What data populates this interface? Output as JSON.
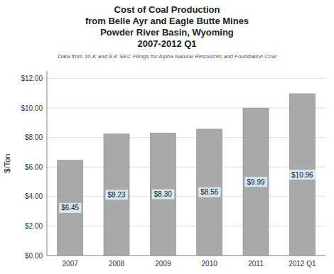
{
  "chart_data": {
    "type": "bar",
    "title": "Cost of Coal Production\nfrom Belle Ayr and Eagle Butte Mines\nPowder River Basin, Wyoming\n2007-2012 Q1",
    "subtitle": "Data from 10-K and 8-K SEC Filings for Alpha Natural Resources and Foundation Coal",
    "categories": [
      "2007",
      "2008",
      "2009",
      "2010",
      "2011",
      "2012 Q1"
    ],
    "values": [
      6.45,
      8.23,
      8.3,
      8.56,
      9.99,
      10.96
    ],
    "value_labels": [
      "$6.45",
      "$8.23",
      "$8.30",
      "$8.56",
      "$9.99",
      "$10.96"
    ],
    "data_labels": true,
    "color": "#A9A9A9",
    "ylabel": "$/Ton",
    "ylim": [
      0,
      12.5
    ],
    "yticks": [
      {
        "value": 0,
        "label": "$0.00"
      },
      {
        "value": 2,
        "label": "$2.00"
      },
      {
        "value": 4,
        "label": "$4.00"
      },
      {
        "value": 6,
        "label": "$6.00"
      },
      {
        "value": 8,
        "label": "$8.00"
      },
      {
        "value": 10,
        "label": "$10.00"
      },
      {
        "value": 12,
        "label": "$12.00"
      }
    ],
    "grid": true
  }
}
